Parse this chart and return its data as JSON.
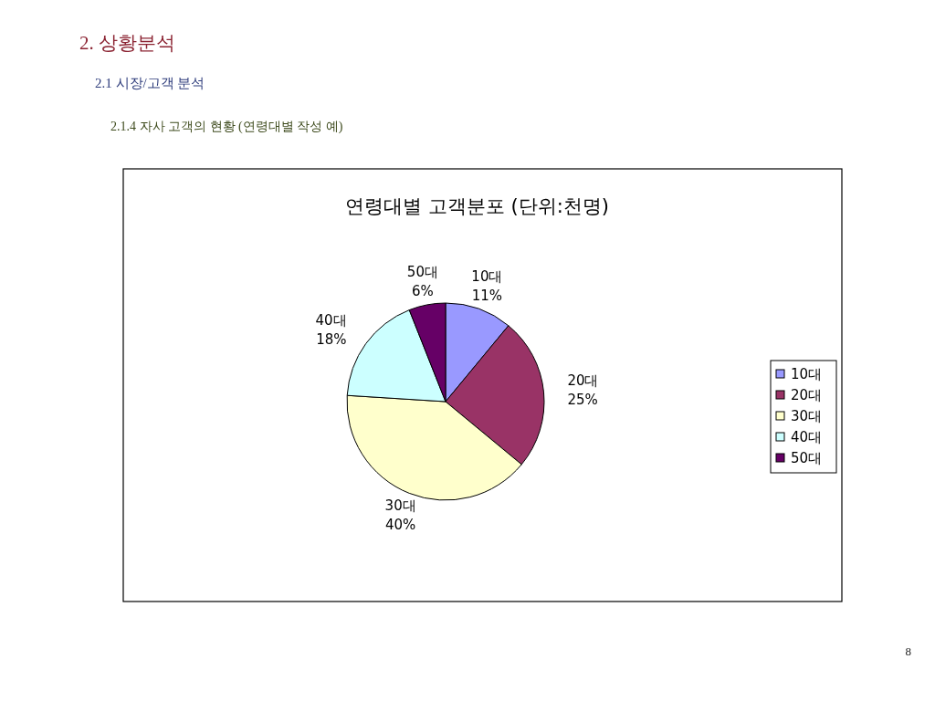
{
  "chart_data": {
    "type": "pie",
    "title": "연령대별 고객분포 (단위:천명)",
    "categories": [
      "10대",
      "20대",
      "30대",
      "40대",
      "50대"
    ],
    "values": [
      11,
      25,
      40,
      18,
      6
    ],
    "value_labels": [
      "11%",
      "25%",
      "40%",
      "18%",
      "6%"
    ],
    "colors": [
      "#9999ff",
      "#993366",
      "#ffffcc",
      "#ccffff",
      "#660066"
    ],
    "legend": "right",
    "annotations": [
      "2. 상황분석",
      "2.1 시장/고객 분석",
      "2.1.4 자사 고객의 현황 (연령대별 작성 예)",
      "8"
    ]
  }
}
